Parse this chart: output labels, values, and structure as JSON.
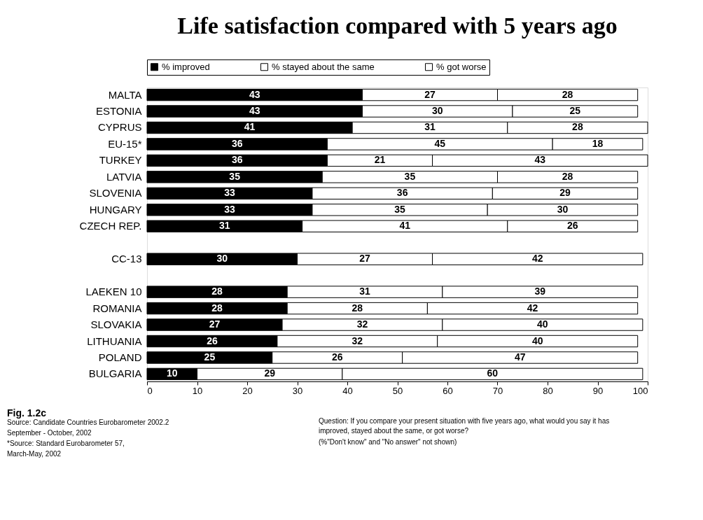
{
  "chart_data": {
    "type": "bar",
    "orientation": "horizontal",
    "stacked": true,
    "title": "Life satisfaction compared with 5 years ago",
    "categories": [
      "MALTA",
      "ESTONIA",
      "CYPRUS",
      "EU-15*",
      "TURKEY",
      "LATVIA",
      "SLOVENIA",
      "HUNGARY",
      "CZECH REP.",
      null,
      "CC-13",
      null,
      "LAEKEN 10",
      "ROMANIA",
      "SLOVAKIA",
      "LITHUANIA",
      "POLAND",
      "BULGARIA"
    ],
    "series": [
      {
        "name": "% improved",
        "color": "#000000",
        "values": [
          43,
          43,
          41,
          36,
          36,
          35,
          33,
          33,
          31,
          null,
          30,
          null,
          28,
          28,
          27,
          26,
          25,
          10
        ]
      },
      {
        "name": "% stayed about the same",
        "color": "#ffffff",
        "values": [
          27,
          30,
          31,
          45,
          21,
          35,
          36,
          35,
          41,
          null,
          27,
          null,
          31,
          28,
          32,
          32,
          26,
          29
        ]
      },
      {
        "name": "% got worse",
        "color": "#ffffff",
        "values": [
          28,
          25,
          28,
          18,
          43,
          28,
          29,
          30,
          26,
          null,
          42,
          null,
          39,
          42,
          40,
          40,
          47,
          60
        ]
      }
    ],
    "xlim": [
      0,
      100
    ],
    "xticks": [
      0,
      10,
      20,
      30,
      40,
      50,
      60,
      70,
      80,
      90,
      100
    ],
    "data_labels": true,
    "legend": "top",
    "grid": false,
    "annotations": [
      "Fig. 1.2c",
      "Source: Candidate Countries Eurobarometer 2002.2",
      "September - October, 2002",
      "*Source: Standard Eurobarometer 57,",
      "March-May, 2002",
      "Question: If you compare your present situation with five years ago, what would you say it has improved, stayed about the same, or got worse?",
      "(%\"Don't know\" and \"No answer\" not shown)"
    ]
  }
}
